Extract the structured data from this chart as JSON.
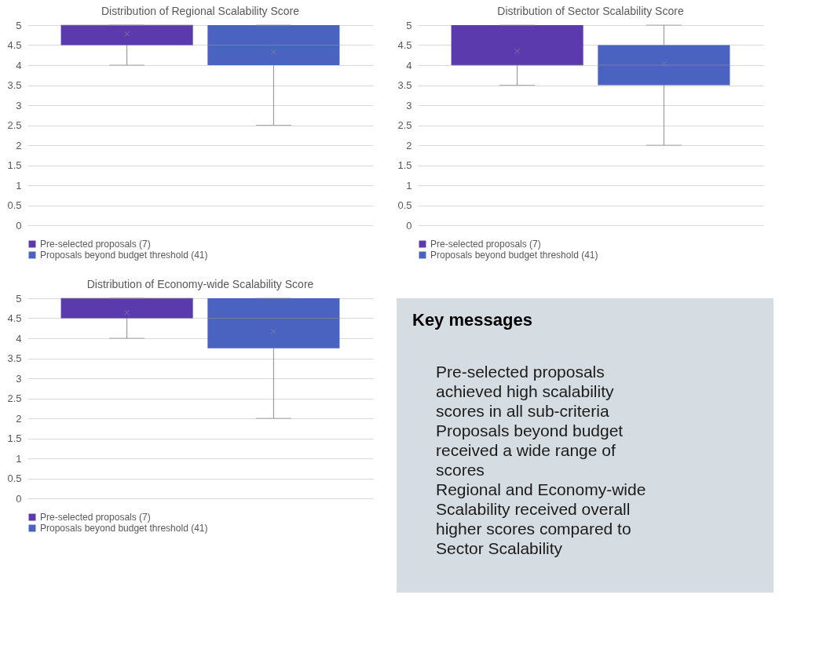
{
  "chart_data": [
    {
      "type": "box",
      "title": "Distribution of Regional Scalability  Score",
      "categories": [
        null
      ],
      "ylim": [
        0,
        5
      ],
      "yticks": [
        0,
        0.5,
        1,
        1.5,
        2,
        2.5,
        3,
        3.5,
        4,
        4.5,
        5
      ],
      "grid": "y",
      "legend": "bottom",
      "tick_labels": "y",
      "series": [
        {
          "name": "Pre-selected proposals (7)",
          "color": "#5b3aae",
          "boxes": [
            {
              "low": 4,
              "q1": 4.5,
              "median": 5,
              "q3": 5,
              "high": 5,
              "mean": 4.78
            }
          ]
        },
        {
          "name": "Proposals beyond budget threshold (41)",
          "color": "#4a62c0",
          "boxes": [
            {
              "low": 2.5,
              "q1": 4,
              "median": 4.5,
              "q3": 5,
              "high": 5,
              "mean": 4.33
            }
          ]
        }
      ]
    },
    {
      "type": "box",
      "title": "Distribution of Sector Scalability  Score",
      "categories": [
        null
      ],
      "ylim": [
        0,
        5
      ],
      "yticks": [
        0,
        0.5,
        1,
        1.5,
        2,
        2.5,
        3,
        3.5,
        4,
        4.5,
        5
      ],
      "grid": "y",
      "legend": "bottom",
      "tick_labels": "y",
      "series": [
        {
          "name": "Pre-selected proposals (7)",
          "color": "#5b3aae",
          "boxes": [
            {
              "low": 3.5,
              "q1": 4,
              "median": 4,
              "q3": 5,
              "high": 5,
              "mean": 4.35
            }
          ]
        },
        {
          "name": "Proposals beyond budget threshold (41)",
          "color": "#4a62c0",
          "boxes": [
            {
              "low": 2,
              "q1": 3.5,
              "median": 4,
              "q3": 4.5,
              "high": 5,
              "mean": 4.03
            }
          ]
        }
      ]
    },
    {
      "type": "box",
      "title": "Distribution of Economy-wide Scalability  Score",
      "categories": [
        null
      ],
      "ylim": [
        0,
        5
      ],
      "yticks": [
        0,
        0.5,
        1,
        1.5,
        2,
        2.5,
        3,
        3.5,
        4,
        4.5,
        5
      ],
      "grid": "y",
      "legend": "bottom",
      "tick_labels": "y",
      "series": [
        {
          "name": "Pre-selected proposals (7)",
          "color": "#5b3aae",
          "boxes": [
            {
              "low": 4,
              "q1": 4.5,
              "median": 5,
              "q3": 5,
              "high": 5,
              "mean": 4.64
            }
          ]
        },
        {
          "name": "Proposals beyond budget threshold (41)",
          "color": "#4a62c0",
          "boxes": [
            {
              "low": 2,
              "q1": 3.75,
              "median": 4.5,
              "q3": 5,
              "high": 5,
              "mean": 4.17
            }
          ]
        }
      ]
    },
    {
      "type": "other",
      "title": "Key messages",
      "annotations": [
        "Pre-selected proposals achieved high scalability scores in all sub-criteria",
        "Proposals beyond budget received a wide range of scores",
        "Regional and Economy-wide Scalability received overall higher scores compared to Sector Scalability"
      ]
    }
  ]
}
